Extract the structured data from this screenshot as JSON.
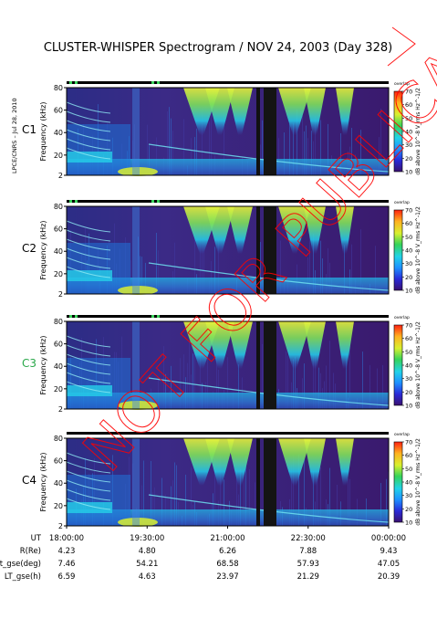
{
  "title": "CLUSTER-WHISPER Spectrogram / NOV 24, 2003 (Day 328)",
  "side_credit": "LPCE/CNRS – Jul 28, 2010",
  "watermark": "NOT FOR PUBLICATION",
  "colors": {
    "background_spec": "#3a1a78",
    "gap_band": "#111111",
    "emission_cyan": "#25c8e6",
    "emission_green": "#7fe05a",
    "emission_yellow": "#e9f23a",
    "watermark": "#ff0000",
    "c3_label": "#2aa84a"
  },
  "chart_data": {
    "type": "heatmap",
    "panels": [
      {
        "id": "C1",
        "label": "C1"
      },
      {
        "id": "C2",
        "label": "C2"
      },
      {
        "id": "C3",
        "label": "C3"
      },
      {
        "id": "C4",
        "label": "C4"
      }
    ],
    "ylabel": "Frequency (kHz)",
    "y_ticks": [
      "80",
      "60",
      "40",
      "20",
      "2"
    ],
    "ylim": [
      2,
      80
    ],
    "colorbar": {
      "label": "dB above 10^-8 V_rms Hz^-1/2",
      "corner_word": "overlap",
      "ticks": [
        "70",
        "60",
        "50",
        "40",
        "30",
        "20",
        "10"
      ],
      "range": [
        10,
        70
      ],
      "colors": [
        "#3a1070",
        "#2a2ad8",
        "#1e90ff",
        "#22d3e8",
        "#35d35a",
        "#d8f030",
        "#ffb020",
        "#ff2010"
      ]
    },
    "x_ticks": [
      "18:00:00",
      "19:30:00",
      "21:00:00",
      "22:30:00",
      "00:00:00"
    ],
    "ephemeris_rows": [
      {
        "label": "UT",
        "values": []
      },
      {
        "label": "R(Re)",
        "values": [
          "4.23",
          "4.80",
          "6.26",
          "7.88",
          "9.43"
        ]
      },
      {
        "label": "Lat_gse(deg)",
        "values": [
          "7.46",
          "54.21",
          "68.58",
          "57.93",
          "47.05"
        ]
      },
      {
        "label": "LT_gse(h)",
        "values": [
          "6.59",
          "4.63",
          "23.97",
          "21.29",
          "20.39"
        ]
      }
    ]
  }
}
